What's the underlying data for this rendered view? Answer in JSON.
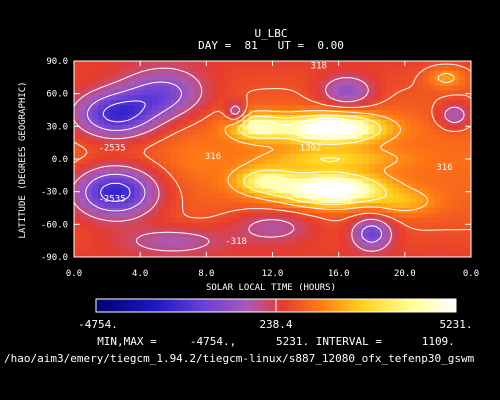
{
  "chart_data": {
    "type": "heatmap",
    "title": "U_LBC",
    "subtitle": "DAY =  81   UT =  0.00",
    "xlabel": "SOLAR LOCAL TIME (HOURS)",
    "ylabel": "LATITUDE (DEGREES GEOGRAPHIC)",
    "xlim": [
      0,
      24
    ],
    "ylim": [
      -90,
      90
    ],
    "x_ticks": [
      "0.0",
      "4.0",
      "8.0",
      "12.0",
      "16.0",
      "20.0",
      "0.0"
    ],
    "y_ticks": [
      "90.0",
      "60.0",
      "30.0",
      "0.0",
      "-30.0",
      "-60.0",
      "-90.0"
    ],
    "contour_labels": [
      {
        "text": "318",
        "x": 14.8,
        "y": 83
      },
      {
        "text": "-2535",
        "x": 2.3,
        "y": 8
      },
      {
        "text": "316",
        "x": 8.4,
        "y": 0
      },
      {
        "text": "1302",
        "x": 14.3,
        "y": 8
      },
      {
        "text": "-2535",
        "x": 2.3,
        "y": -39
      },
      {
        "text": "1302",
        "x": 16.2,
        "y": -39
      },
      {
        "text": "-318",
        "x": 9.8,
        "y": -78
      },
      {
        "text": "316",
        "x": 22.4,
        "y": -10
      }
    ],
    "grid": false,
    "colorbar": {
      "min_label": "-4754.",
      "mid_label": "238.4",
      "max_label": "5231.",
      "min": -4754,
      "max": 5231
    },
    "stats_line": "MIN,MAX =     -4754.,      5231. INTERVAL =      1109.",
    "path_line": "/hao/aim3/emery/tiegcm_1.94.2/tiegcm-linux/s887_12080_ofx_tefenp30_gswm",
    "field_features": [
      {
        "lt": 2.5,
        "lat": 40,
        "value": -3800,
        "w": 2.6,
        "h": 22
      },
      {
        "lt": 2.5,
        "lat": -30,
        "value": -4200,
        "w": 2.6,
        "h": 24
      },
      {
        "lt": 5.5,
        "lat": 60,
        "value": -2500,
        "w": 2.5,
        "h": 22
      },
      {
        "lt": 15.5,
        "lat": 28,
        "value": 5100,
        "w": 3.0,
        "h": 13
      },
      {
        "lt": 15.5,
        "lat": -28,
        "value": 5000,
        "w": 3.0,
        "h": 14
      },
      {
        "lt": 11.0,
        "lat": 30,
        "value": 3000,
        "w": 1.6,
        "h": 12
      },
      {
        "lt": 11.5,
        "lat": -20,
        "value": 2500,
        "w": 1.8,
        "h": 12
      },
      {
        "lt": 15.5,
        "lat": 0,
        "value": 1600,
        "w": 4.0,
        "h": 10
      },
      {
        "lt": 16.5,
        "lat": 62,
        "value": -2200,
        "w": 1.6,
        "h": 14
      },
      {
        "lt": 18.0,
        "lat": -68,
        "value": -2800,
        "w": 1.2,
        "h": 15
      },
      {
        "lt": 9.8,
        "lat": 42,
        "value": -2200,
        "w": 0.6,
        "h": 10
      },
      {
        "lt": 12.0,
        "lat": -62,
        "value": -1500,
        "w": 2.5,
        "h": 15
      },
      {
        "lt": 23.0,
        "lat": 40,
        "value": -2000,
        "w": 1.0,
        "h": 12
      },
      {
        "lt": 6.0,
        "lat": -75,
        "value": -1500,
        "w": 3.0,
        "h": 12
      },
      {
        "lt": 22.5,
        "lat": 75,
        "value": 1500,
        "w": 1.2,
        "h": 10
      },
      {
        "lt": 20.0,
        "lat": -40,
        "value": 1200,
        "w": 2.0,
        "h": 12
      },
      {
        "lt": 7.5,
        "lat": 0,
        "value": 300,
        "w": 1.5,
        "h": 20
      }
    ],
    "series_colors": [
      "#00006e",
      "#1e19c8",
      "#6b3fd8",
      "#a85ab8",
      "#e63b2e",
      "#ff7a14",
      "#ffd21e",
      "#ffff9a",
      "#ffffff"
    ]
  }
}
